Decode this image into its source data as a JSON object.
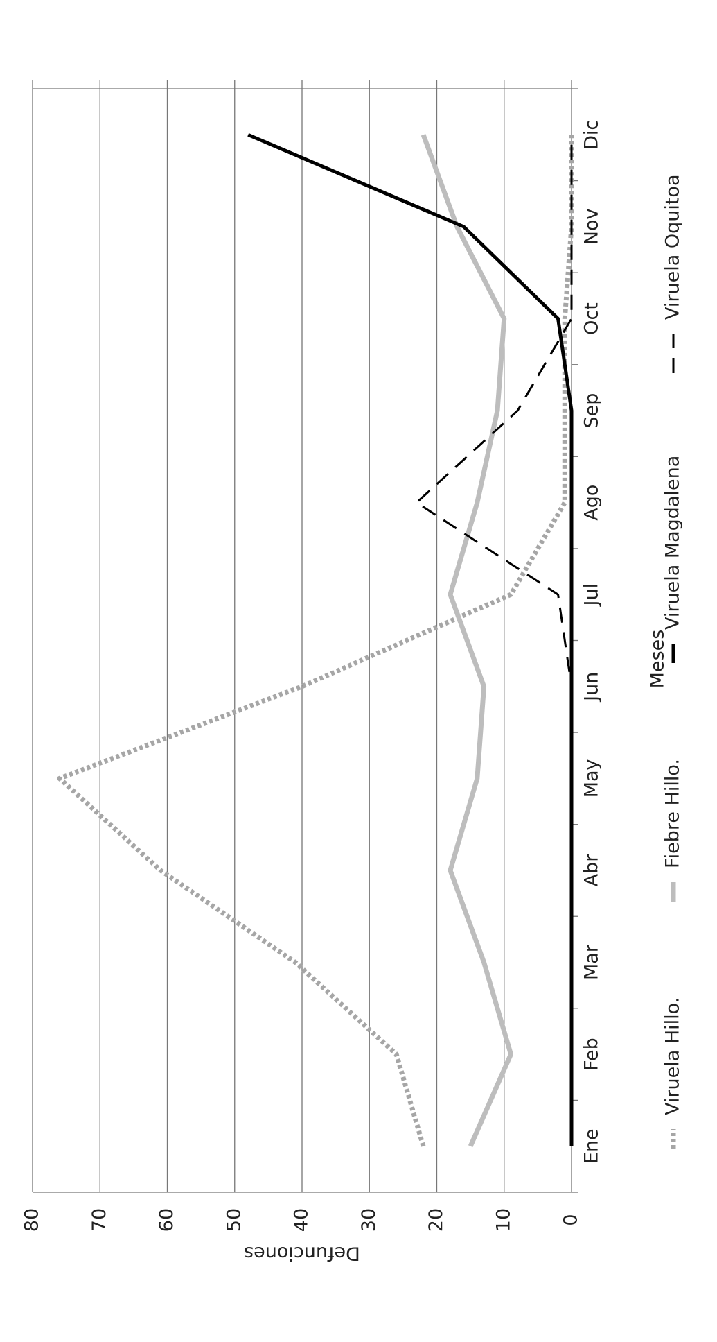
{
  "chart_data": {
    "type": "line",
    "x_label": "Meses",
    "y_label": "Defunciones",
    "categories": [
      "Ene",
      "Feb",
      "Mar",
      "Abr",
      "May",
      "Jun",
      "Jul",
      "Ago",
      "Sep",
      "Oct",
      "Nov",
      "Dic"
    ],
    "series": [
      {
        "name": "Viruela Hillo.",
        "color": "#a6a6a6",
        "style": "dotted",
        "values": [
          22,
          26,
          41,
          61,
          76,
          40,
          9,
          1,
          1,
          1,
          0,
          0
        ]
      },
      {
        "name": "Fiebre Hillo.",
        "color": "#bdbdbd",
        "style": "solid",
        "values": [
          15,
          9,
          13,
          18,
          14,
          13,
          18,
          14,
          11,
          10,
          17,
          22
        ]
      },
      {
        "name": "Viruela Magdalena",
        "color": "#000000",
        "style": "solid",
        "values": [
          0,
          0,
          0,
          0,
          0,
          0,
          0,
          0,
          0,
          2,
          16,
          48
        ]
      },
      {
        "name": "Viruela Oquitoa",
        "color": "#000000",
        "style": "dashed",
        "values": [
          0,
          0,
          0,
          0,
          0,
          0,
          2,
          23,
          8,
          0,
          0,
          0
        ]
      }
    ],
    "ylim": [
      0,
      80
    ],
    "yticks": [
      0,
      10,
      20,
      30,
      40,
      50,
      60,
      70,
      80
    ],
    "grid": true,
    "legend": "bottom"
  }
}
